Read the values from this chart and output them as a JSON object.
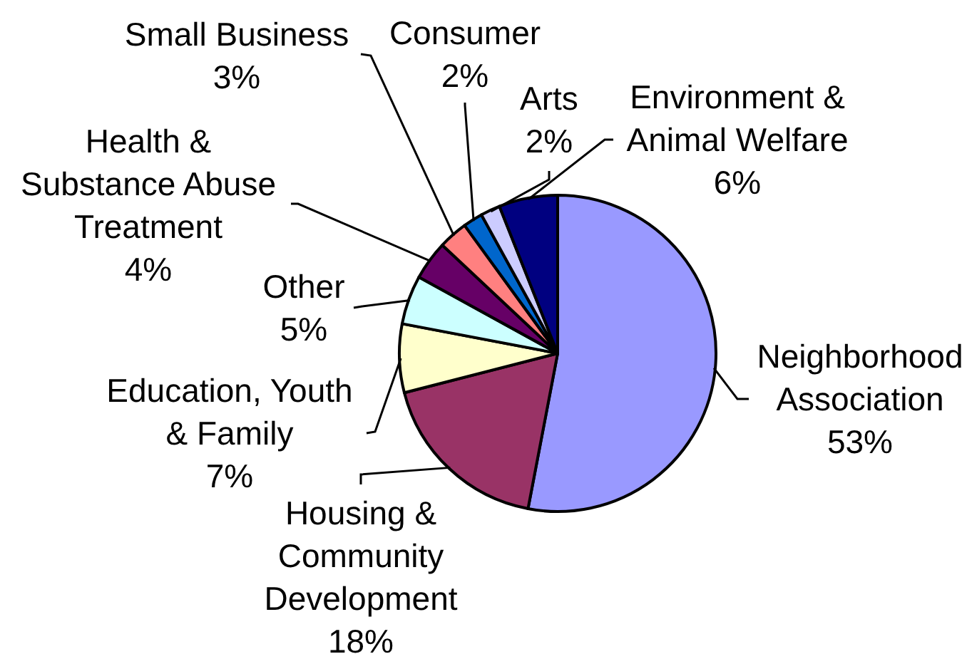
{
  "chart_data": {
    "type": "pie",
    "categories": [
      "Neighborhood Association",
      "Housing & Community Development",
      "Education, Youth & Family",
      "Other",
      "Health & Substance Abuse Treatment",
      "Small Business",
      "Consumer",
      "Arts",
      "Environment & Animal Welfare"
    ],
    "values": [
      53,
      18,
      7,
      5,
      4,
      3,
      2,
      2,
      6
    ],
    "value_labels": [
      "53%",
      "18%",
      "7%",
      "5%",
      "4%",
      "3%",
      "2%",
      "2%",
      "6%"
    ],
    "colors": [
      "#9999ff",
      "#993366",
      "#ffffcc",
      "#ccffff",
      "#660066",
      "#ff8080",
      "#0066cc",
      "#ccccff",
      "#000080"
    ],
    "legend": false
  }
}
